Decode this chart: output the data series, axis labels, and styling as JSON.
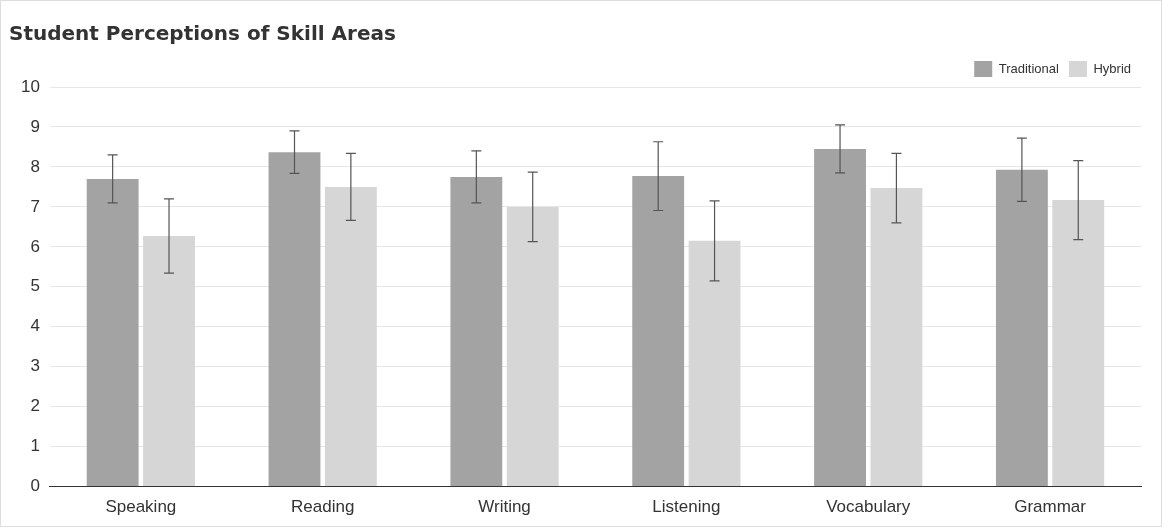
{
  "chart_data": {
    "type": "bar",
    "title": "Student Perceptions of Skill Areas",
    "categories": [
      "Speaking",
      "Reading",
      "Writing",
      "Listening",
      "Vocabulary",
      "Grammar"
    ],
    "series": [
      {
        "name": "Traditional",
        "color": "#a3a3a3",
        "values": [
          7.7,
          8.37,
          7.75,
          7.77,
          8.45,
          7.93
        ],
        "errors": [
          0.6,
          0.53,
          0.65,
          0.86,
          0.6,
          0.79
        ]
      },
      {
        "name": "Hybrid",
        "color": "#d6d6d6",
        "values": [
          6.27,
          7.5,
          7.0,
          6.15,
          7.47,
          7.17
        ],
        "errors": [
          0.93,
          0.84,
          0.87,
          1.0,
          0.87,
          0.99
        ]
      }
    ],
    "ylim": [
      0,
      10
    ],
    "yticks": [
      0,
      1,
      2,
      3,
      4,
      5,
      6,
      7,
      8,
      9,
      10
    ],
    "grid": "y",
    "legend": "top right"
  }
}
